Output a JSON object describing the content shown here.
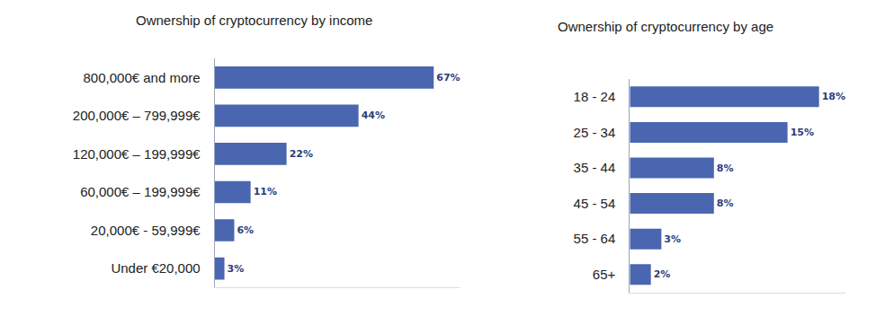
{
  "chart_data": [
    {
      "type": "bar",
      "title": "Ownership of cryptocurrency by income",
      "orientation": "horizontal",
      "categories": [
        "800,000€ and more",
        "200,000€ – 799,999€",
        "120,000€ – 199,999€",
        "60,000€ – 199,999€",
        "20,000€ - 59,999€",
        "Under €20,000"
      ],
      "values": [
        67,
        44,
        22,
        11,
        6,
        3
      ],
      "value_labels": [
        "67%",
        "44%",
        "22%",
        "11%",
        "6%",
        "3%"
      ],
      "color": "#4a66b0",
      "data_labels": true,
      "grid": false,
      "tick_labels": "y",
      "xlim": [
        0,
        75
      ]
    },
    {
      "type": "bar",
      "title": "Ownership of cryptocurrency by age",
      "orientation": "horizontal",
      "categories": [
        "18 - 24",
        "25 - 34",
        "35 - 44",
        "45 - 54",
        "55 - 64",
        "65+"
      ],
      "values": [
        18,
        15,
        8,
        8,
        3,
        2
      ],
      "value_labels": [
        "18%",
        "15%",
        "8%",
        "8%",
        "3%",
        "2%"
      ],
      "color": "#4a66b0",
      "data_labels": true,
      "grid": false,
      "tick_labels": "y",
      "xlim": [
        0,
        20.5
      ]
    }
  ]
}
